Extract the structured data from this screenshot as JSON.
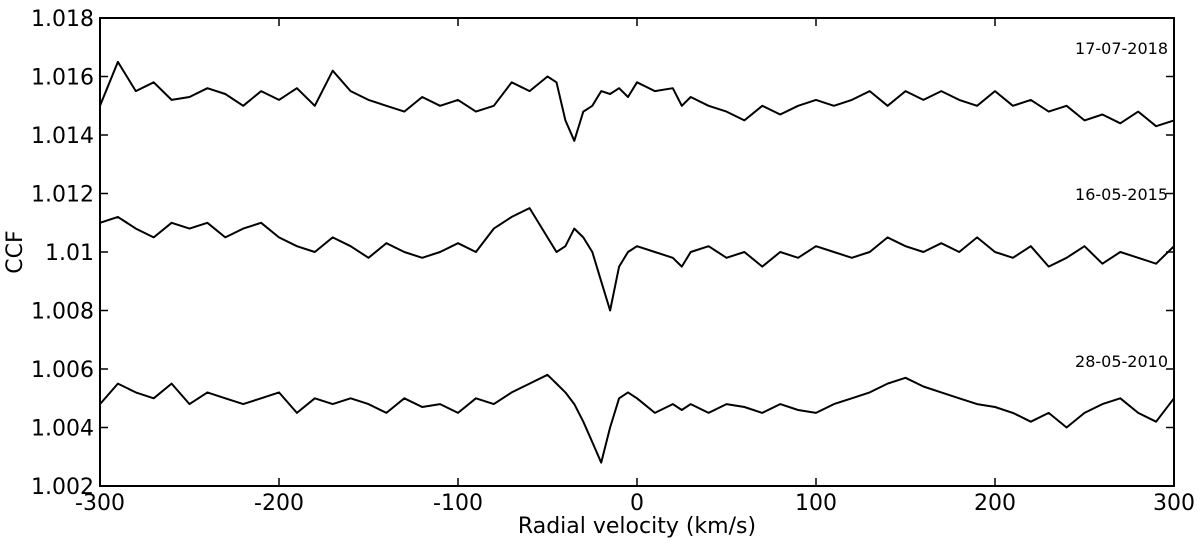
{
  "chart_data": {
    "type": "line",
    "xlabel": "Radial velocity (km/s)",
    "ylabel": "CCF",
    "xlim": [
      -300,
      300
    ],
    "ylim": [
      1.002,
      1.018
    ],
    "xticks": [
      {
        "value": -300,
        "label": "-300"
      },
      {
        "value": -200,
        "label": "-200"
      },
      {
        "value": -100,
        "label": "-100"
      },
      {
        "value": 0,
        "label": "0"
      },
      {
        "value": 100,
        "label": "100"
      },
      {
        "value": 200,
        "label": "200"
      },
      {
        "value": 300,
        "label": "300"
      }
    ],
    "yticks": [
      {
        "value": 1.002,
        "label": "1.002"
      },
      {
        "value": 1.004,
        "label": "1.004"
      },
      {
        "value": 1.006,
        "label": "1.006"
      },
      {
        "value": 1.008,
        "label": "1.008"
      },
      {
        "value": 1.01,
        "label": "1.01"
      },
      {
        "value": 1.012,
        "label": "1.012"
      },
      {
        "value": 1.014,
        "label": "1.014"
      },
      {
        "value": 1.016,
        "label": "1.016"
      },
      {
        "value": 1.018,
        "label": "1.018"
      }
    ],
    "grid": false,
    "legend": "none",
    "line_color": "#000000",
    "x": [
      -300,
      -290,
      -280,
      -270,
      -260,
      -250,
      -240,
      -230,
      -220,
      -210,
      -200,
      -190,
      -180,
      -170,
      -160,
      -150,
      -140,
      -130,
      -120,
      -110,
      -100,
      -90,
      -80,
      -70,
      -60,
      -50,
      -45,
      -40,
      -35,
      -30,
      -25,
      -20,
      -15,
      -10,
      -5,
      0,
      10,
      20,
      25,
      30,
      40,
      50,
      60,
      70,
      80,
      90,
      100,
      110,
      120,
      130,
      140,
      150,
      160,
      170,
      180,
      190,
      200,
      210,
      220,
      230,
      240,
      250,
      260,
      270,
      280,
      290,
      300
    ],
    "series": [
      {
        "name": "17-07-2018",
        "values": [
          1.015,
          1.0165,
          1.0155,
          1.0158,
          1.0152,
          1.0153,
          1.0156,
          1.0154,
          1.015,
          1.0155,
          1.0152,
          1.0156,
          1.015,
          1.0162,
          1.0155,
          1.0152,
          1.015,
          1.0148,
          1.0153,
          1.015,
          1.0152,
          1.0148,
          1.015,
          1.0158,
          1.0155,
          1.016,
          1.0158,
          1.0145,
          1.0138,
          1.0148,
          1.015,
          1.0155,
          1.0154,
          1.0156,
          1.0153,
          1.0158,
          1.0155,
          1.0156,
          1.015,
          1.0153,
          1.015,
          1.0148,
          1.0145,
          1.015,
          1.0147,
          1.015,
          1.0152,
          1.015,
          1.0152,
          1.0155,
          1.015,
          1.0155,
          1.0152,
          1.0155,
          1.0152,
          1.015,
          1.0155,
          1.015,
          1.0152,
          1.0148,
          1.015,
          1.0145,
          1.0147,
          1.0144,
          1.0148,
          1.0143,
          1.0145
        ]
      },
      {
        "name": "16-05-2015",
        "values": [
          1.011,
          1.0112,
          1.0108,
          1.0105,
          1.011,
          1.0108,
          1.011,
          1.0105,
          1.0108,
          1.011,
          1.0105,
          1.0102,
          1.01,
          1.0105,
          1.0102,
          1.0098,
          1.0103,
          1.01,
          1.0098,
          1.01,
          1.0103,
          1.01,
          1.0108,
          1.0112,
          1.0115,
          1.0105,
          1.01,
          1.0102,
          1.0108,
          1.0105,
          1.01,
          1.009,
          1.008,
          1.0095,
          1.01,
          1.0102,
          1.01,
          1.0098,
          1.0095,
          1.01,
          1.0102,
          1.0098,
          1.01,
          1.0095,
          1.01,
          1.0098,
          1.0102,
          1.01,
          1.0098,
          1.01,
          1.0105,
          1.0102,
          1.01,
          1.0103,
          1.01,
          1.0105,
          1.01,
          1.0098,
          1.0102,
          1.0095,
          1.0098,
          1.0102,
          1.0096,
          1.01,
          1.0098,
          1.0096,
          1.0102
        ]
      },
      {
        "name": "28-05-2010",
        "values": [
          1.0048,
          1.0055,
          1.0052,
          1.005,
          1.0055,
          1.0048,
          1.0052,
          1.005,
          1.0048,
          1.005,
          1.0052,
          1.0045,
          1.005,
          1.0048,
          1.005,
          1.0048,
          1.0045,
          1.005,
          1.0047,
          1.0048,
          1.0045,
          1.005,
          1.0048,
          1.0052,
          1.0055,
          1.0058,
          1.0055,
          1.0052,
          1.0048,
          1.0042,
          1.0035,
          1.0028,
          1.004,
          1.005,
          1.0052,
          1.005,
          1.0045,
          1.0048,
          1.0046,
          1.0048,
          1.0045,
          1.0048,
          1.0047,
          1.0045,
          1.0048,
          1.0046,
          1.0045,
          1.0048,
          1.005,
          1.0052,
          1.0055,
          1.0057,
          1.0054,
          1.0052,
          1.005,
          1.0048,
          1.0047,
          1.0045,
          1.0042,
          1.0045,
          1.004,
          1.0045,
          1.0048,
          1.005,
          1.0045,
          1.0042,
          1.005
        ]
      }
    ]
  }
}
